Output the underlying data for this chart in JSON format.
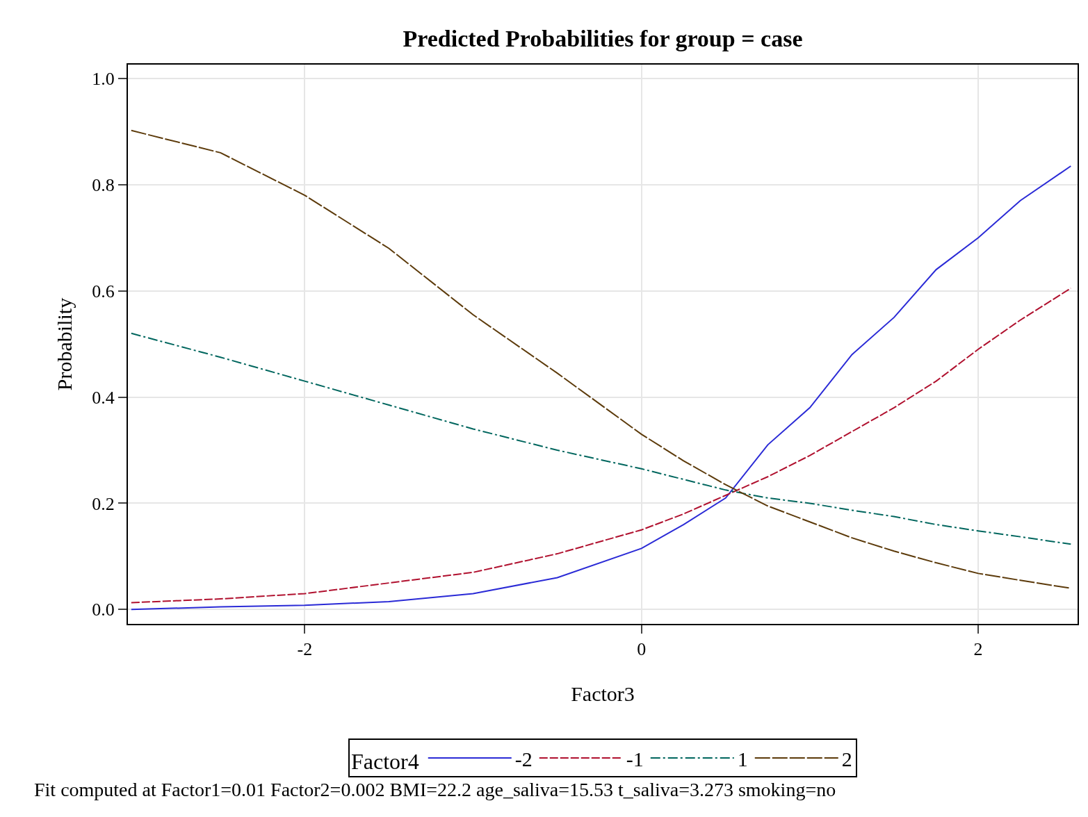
{
  "chart_data": {
    "type": "line",
    "title": "Predicted Probabilities for group = case",
    "xlabel": "Factor3",
    "ylabel": "Probability",
    "legend_title": "Factor4",
    "x": [
      -3.03,
      -2.5,
      -2,
      -1.5,
      -1,
      -0.5,
      0,
      0.25,
      0.5,
      0.75,
      1,
      1.25,
      1.5,
      1.75,
      2,
      2.25,
      2.55
    ],
    "series": [
      {
        "name": "-2",
        "color": "#2a2ad6",
        "line_style": "solid",
        "values": [
          0.0,
          0.005,
          0.008,
          0.015,
          0.03,
          0.06,
          0.115,
          0.16,
          0.21,
          0.31,
          0.38,
          0.48,
          0.55,
          0.64,
          0.7,
          0.77,
          0.835
        ]
      },
      {
        "name": "-1",
        "color": "#b0102e",
        "line_style": "dashed",
        "values": [
          0.013,
          0.02,
          0.03,
          0.05,
          0.07,
          0.105,
          0.15,
          0.18,
          0.215,
          0.25,
          0.29,
          0.335,
          0.38,
          0.43,
          0.49,
          0.545,
          0.605
        ]
      },
      {
        "name": "1",
        "color": "#00665e",
        "line_style": "dashdot",
        "values": [
          0.52,
          0.475,
          0.43,
          0.385,
          0.34,
          0.3,
          0.265,
          0.245,
          0.225,
          0.21,
          0.2,
          0.187,
          0.175,
          0.16,
          0.148,
          0.137,
          0.123
        ]
      },
      {
        "name": "2",
        "color": "#5c3a0a",
        "line_style": "longdash",
        "values": [
          0.902,
          0.86,
          0.78,
          0.68,
          0.555,
          0.445,
          0.33,
          0.28,
          0.235,
          0.195,
          0.165,
          0.135,
          0.11,
          0.088,
          0.068,
          0.055,
          0.04
        ]
      }
    ],
    "xlim": [
      -3.05,
      2.59
    ],
    "xticks": [
      -2,
      0,
      2
    ],
    "ylim": [
      -0.027,
      1.026
    ],
    "yticks": [
      {
        "value": 0,
        "label": "0.0"
      },
      {
        "value": 0.2,
        "label": "0.2"
      },
      {
        "value": 0.4,
        "label": "0.4"
      },
      {
        "value": 0.6,
        "label": "0.6"
      },
      {
        "value": 0.8,
        "label": "0.8"
      },
      {
        "value": 1,
        "label": "1.0"
      }
    ],
    "grid": true,
    "legend": "bottom",
    "annotations": [
      "Fit computed at Factor1=0.01 Factor2=0.002 BMI=22.2 age_saliva=15.53 t_saliva=3.273 smoking=no"
    ]
  }
}
